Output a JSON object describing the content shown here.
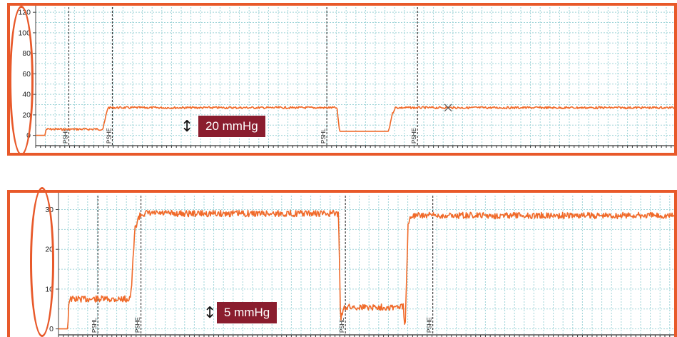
{
  "colors": {
    "trace": "#f06a2a",
    "frame": "#e8592a",
    "grid": "#9fd4d8",
    "marker": "#222222",
    "badge_bg": "#8a1d2e",
    "badge_text": "#ffffff"
  },
  "chart_data": [
    {
      "type": "line",
      "title": "",
      "xlabel": "",
      "ylabel": "",
      "ylim": [
        -10,
        125
      ],
      "yticks": [
        0,
        20,
        40,
        60,
        80,
        100,
        120
      ],
      "tick_labels": [
        "0",
        "20",
        "40",
        "60",
        "80",
        "100",
        "120"
      ],
      "grid": true,
      "x_unit_note": "",
      "xlim": [
        0,
        100
      ],
      "series": [
        {
          "x": [
            0,
            1.5,
            1.6,
            10.5,
            10.6,
            11.3,
            47.0,
            47.2,
            47.6,
            55.3,
            55.8,
            56.3,
            100
          ],
          "y": [
            0,
            0,
            6,
            6,
            8,
            27,
            27,
            26,
            4,
            4,
            20,
            27,
            27
          ]
        }
      ],
      "markers": [
        {
          "x": 5.2,
          "label": "PSHL"
        },
        {
          "x": 12.0,
          "label": "PSHE"
        },
        {
          "x": 45.6,
          "label": "PSHL"
        },
        {
          "x": 59.8,
          "label": "PSHE"
        }
      ],
      "cross_marker_x": 64.6,
      "scale_label": "20 mmHg"
    },
    {
      "type": "line",
      "title": "",
      "xlabel": "",
      "ylabel": "",
      "ylim": [
        -1.5,
        33.5
      ],
      "yticks": [
        0,
        10,
        20,
        30
      ],
      "tick_labels": [
        "0",
        "10",
        "20",
        "30"
      ],
      "grid": true,
      "xlim": [
        0,
        100
      ],
      "series": [
        {
          "x": [
            0,
            1.5,
            1.7,
            11.5,
            11.8,
            12.4,
            13.0,
            13.6,
            45.5,
            45.8,
            46.3,
            56.0,
            56.3,
            56.8,
            57.3,
            100
          ],
          "y": [
            0,
            0,
            7.5,
            7.5,
            9.0,
            25.0,
            28.0,
            29.0,
            29.0,
            2.0,
            5.5,
            5.5,
            0.5,
            27.0,
            28.5,
            28.5
          ]
        }
      ],
      "markers": [
        {
          "x": 6.4,
          "label": "PSHL"
        },
        {
          "x": 13.4,
          "label": "PSHE"
        },
        {
          "x": 46.6,
          "label": "PSHL"
        },
        {
          "x": 60.8,
          "label": "PSHE"
        }
      ],
      "scale_label": "5 mmHg"
    }
  ]
}
